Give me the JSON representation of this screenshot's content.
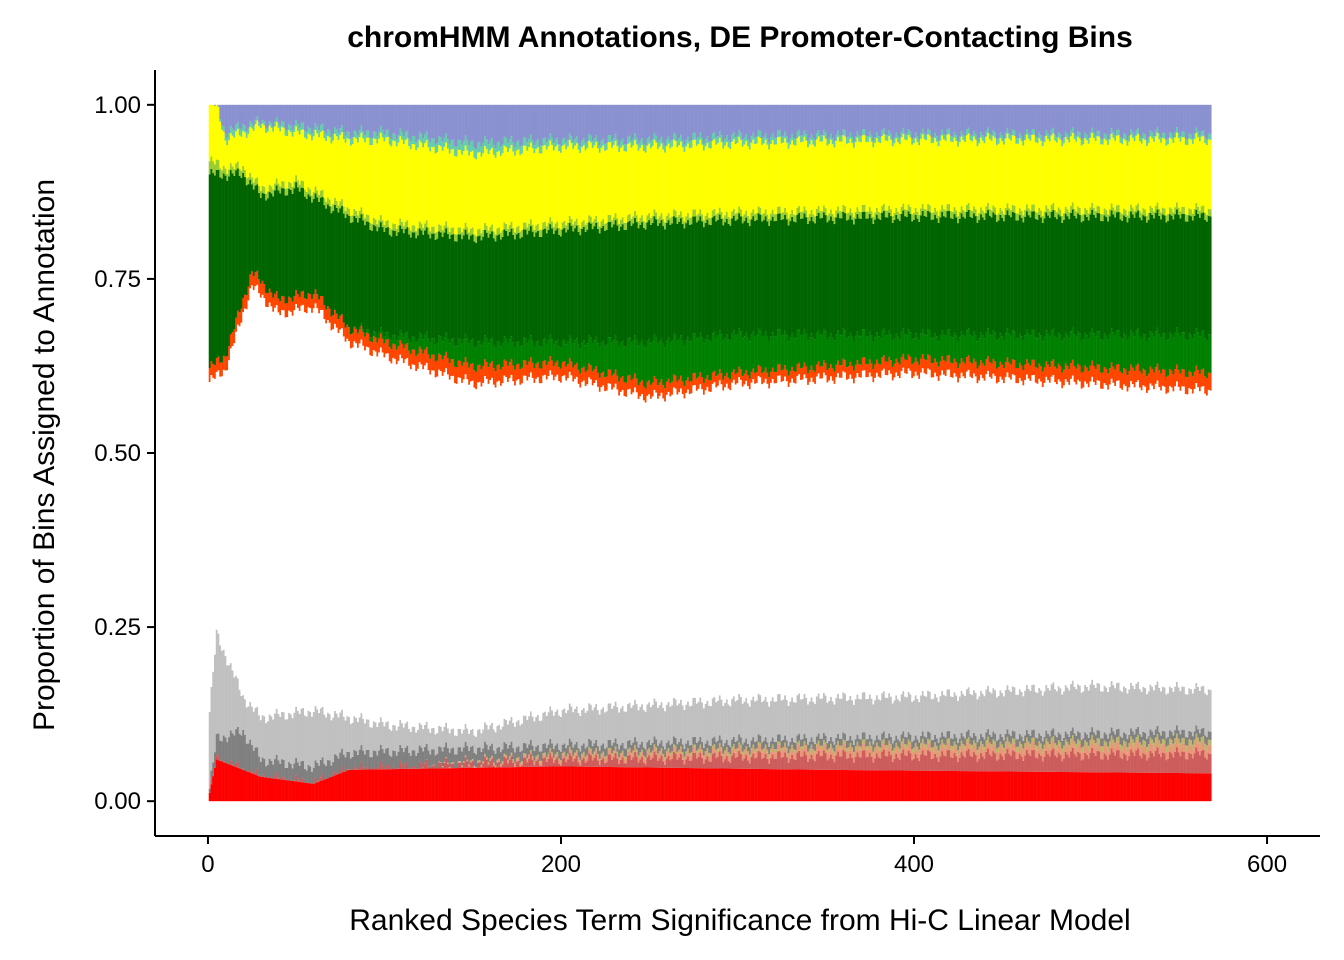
{
  "chart_data": {
    "type": "bar",
    "stacked": true,
    "title": "chromHMM Annotations, DE Promoter-Contacting Bins",
    "xlabel": "Ranked Species Term Significance from Hi-C Linear Model",
    "ylabel": "Proportion of Bins Assigned to Annotation",
    "xlim": [
      -30,
      630
    ],
    "ylim": [
      -0.05,
      1.05
    ],
    "x_ticks": [
      {
        "value": 0,
        "label": "0"
      },
      {
        "value": 200,
        "label": "200"
      },
      {
        "value": 400,
        "label": "400"
      },
      {
        "value": 600,
        "label": "600"
      }
    ],
    "y_ticks": [
      {
        "value": 0,
        "label": "0.00"
      },
      {
        "value": 0.25,
        "label": "0.25"
      },
      {
        "value": 0.5,
        "label": "0.50"
      },
      {
        "value": 0.75,
        "label": "0.75"
      },
      {
        "value": 1.0,
        "label": "1.00"
      }
    ],
    "grid": false,
    "legend": "none",
    "n_bars": 568,
    "x_range": [
      1,
      568
    ],
    "layers": [
      {
        "color": "#FF0000",
        "boundary_top": [
          [
            0,
            0.0
          ],
          [
            5,
            0.06
          ],
          [
            30,
            0.035
          ],
          [
            60,
            0.025
          ],
          [
            80,
            0.045
          ],
          [
            200,
            0.05
          ],
          [
            350,
            0.045
          ],
          [
            568,
            0.04
          ]
        ]
      },
      {
        "color": "#CD5C5C",
        "boundary_top": [
          [
            0,
            0.0
          ],
          [
            5,
            0.06
          ],
          [
            30,
            0.035
          ],
          [
            60,
            0.025
          ],
          [
            80,
            0.045
          ],
          [
            120,
            0.05
          ],
          [
            200,
            0.06
          ],
          [
            350,
            0.065
          ],
          [
            568,
            0.068
          ]
        ]
      },
      {
        "color": "#E9967A",
        "boundary_top": [
          [
            0,
            0.0
          ],
          [
            5,
            0.06
          ],
          [
            30,
            0.035
          ],
          [
            60,
            0.025
          ],
          [
            80,
            0.045
          ],
          [
            120,
            0.05
          ],
          [
            200,
            0.065
          ],
          [
            350,
            0.075
          ],
          [
            568,
            0.08
          ]
        ]
      },
      {
        "color": "#BDB76B",
        "boundary_top": [
          [
            0,
            0.0
          ],
          [
            5,
            0.06
          ],
          [
            30,
            0.035
          ],
          [
            60,
            0.025
          ],
          [
            80,
            0.045
          ],
          [
            120,
            0.05
          ],
          [
            200,
            0.068
          ],
          [
            350,
            0.08
          ],
          [
            568,
            0.088
          ]
        ]
      },
      {
        "color": "#808080",
        "boundary_top": [
          [
            0,
            0.0
          ],
          [
            5,
            0.09
          ],
          [
            20,
            0.1
          ],
          [
            30,
            0.06
          ],
          [
            60,
            0.05
          ],
          [
            80,
            0.07
          ],
          [
            200,
            0.08
          ],
          [
            350,
            0.09
          ],
          [
            568,
            0.1
          ]
        ]
      },
      {
        "color": "#C0C0C0",
        "boundary_top": [
          [
            0,
            0.1
          ],
          [
            5,
            0.24
          ],
          [
            20,
            0.15
          ],
          [
            30,
            0.12
          ],
          [
            60,
            0.13
          ],
          [
            100,
            0.11
          ],
          [
            150,
            0.1
          ],
          [
            200,
            0.13
          ],
          [
            300,
            0.145
          ],
          [
            400,
            0.15
          ],
          [
            500,
            0.165
          ],
          [
            568,
            0.16
          ]
        ]
      },
      {
        "color": "#FFFFFF",
        "boundary_top": [
          [
            0,
            0.6
          ],
          [
            10,
            0.62
          ],
          [
            20,
            0.7
          ],
          [
            25,
            0.74
          ],
          [
            40,
            0.7
          ],
          [
            60,
            0.71
          ],
          [
            80,
            0.66
          ],
          [
            100,
            0.64
          ],
          [
            150,
            0.6
          ],
          [
            200,
            0.61
          ],
          [
            250,
            0.58
          ],
          [
            300,
            0.6
          ],
          [
            400,
            0.615
          ],
          [
            568,
            0.59
          ]
        ]
      },
      {
        "color": "#FF4500",
        "boundary_top": [
          [
            0,
            0.62
          ],
          [
            10,
            0.64
          ],
          [
            20,
            0.72
          ],
          [
            25,
            0.76
          ],
          [
            40,
            0.72
          ],
          [
            60,
            0.73
          ],
          [
            80,
            0.68
          ],
          [
            100,
            0.66
          ],
          [
            150,
            0.625
          ],
          [
            200,
            0.63
          ],
          [
            250,
            0.6
          ],
          [
            300,
            0.615
          ],
          [
            400,
            0.635
          ],
          [
            568,
            0.615
          ]
        ]
      },
      {
        "color": "#008000",
        "boundary_top": [
          [
            0,
            0.62
          ],
          [
            10,
            0.64
          ],
          [
            20,
            0.72
          ],
          [
            25,
            0.76
          ],
          [
            40,
            0.72
          ],
          [
            60,
            0.73
          ],
          [
            80,
            0.68
          ],
          [
            100,
            0.67
          ],
          [
            150,
            0.66
          ],
          [
            200,
            0.66
          ],
          [
            250,
            0.66
          ],
          [
            300,
            0.67
          ],
          [
            400,
            0.67
          ],
          [
            568,
            0.67
          ]
        ]
      },
      {
        "color": "#006400",
        "boundary_top": [
          [
            0,
            0.9
          ],
          [
            10,
            0.9
          ],
          [
            20,
            0.9
          ],
          [
            30,
            0.87
          ],
          [
            50,
            0.88
          ],
          [
            80,
            0.84
          ],
          [
            100,
            0.82
          ],
          [
            150,
            0.81
          ],
          [
            200,
            0.82
          ],
          [
            250,
            0.83
          ],
          [
            300,
            0.835
          ],
          [
            400,
            0.84
          ],
          [
            568,
            0.84
          ]
        ]
      },
      {
        "color": "#9ACD32",
        "boundary_top": [
          [
            0,
            0.92
          ],
          [
            10,
            0.91
          ],
          [
            20,
            0.91
          ],
          [
            30,
            0.88
          ],
          [
            50,
            0.89
          ],
          [
            80,
            0.85
          ],
          [
            100,
            0.83
          ],
          [
            150,
            0.82
          ],
          [
            200,
            0.83
          ],
          [
            250,
            0.84
          ],
          [
            300,
            0.845
          ],
          [
            400,
            0.85
          ],
          [
            568,
            0.85
          ]
        ]
      },
      {
        "color": "#FFFF00",
        "boundary_top": [
          [
            0,
            1.0
          ],
          [
            5,
            1.0
          ],
          [
            10,
            0.95
          ],
          [
            20,
            0.96
          ],
          [
            30,
            0.97
          ],
          [
            50,
            0.96
          ],
          [
            80,
            0.95
          ],
          [
            100,
            0.95
          ],
          [
            150,
            0.93
          ],
          [
            200,
            0.94
          ],
          [
            250,
            0.94
          ],
          [
            300,
            0.945
          ],
          [
            400,
            0.95
          ],
          [
            568,
            0.95
          ]
        ]
      },
      {
        "color": "#66CDAA",
        "boundary_top": [
          [
            0,
            1.0
          ],
          [
            5,
            1.0
          ],
          [
            10,
            0.96
          ],
          [
            20,
            0.97
          ],
          [
            30,
            0.975
          ],
          [
            50,
            0.97
          ],
          [
            80,
            0.96
          ],
          [
            100,
            0.96
          ],
          [
            150,
            0.945
          ],
          [
            200,
            0.95
          ],
          [
            250,
            0.95
          ],
          [
            300,
            0.955
          ],
          [
            400,
            0.958
          ],
          [
            568,
            0.958
          ]
        ]
      },
      {
        "color": "#8A91D0",
        "boundary_top": [
          [
            0,
            1.0
          ],
          [
            568,
            1.0
          ]
        ]
      }
    ]
  }
}
